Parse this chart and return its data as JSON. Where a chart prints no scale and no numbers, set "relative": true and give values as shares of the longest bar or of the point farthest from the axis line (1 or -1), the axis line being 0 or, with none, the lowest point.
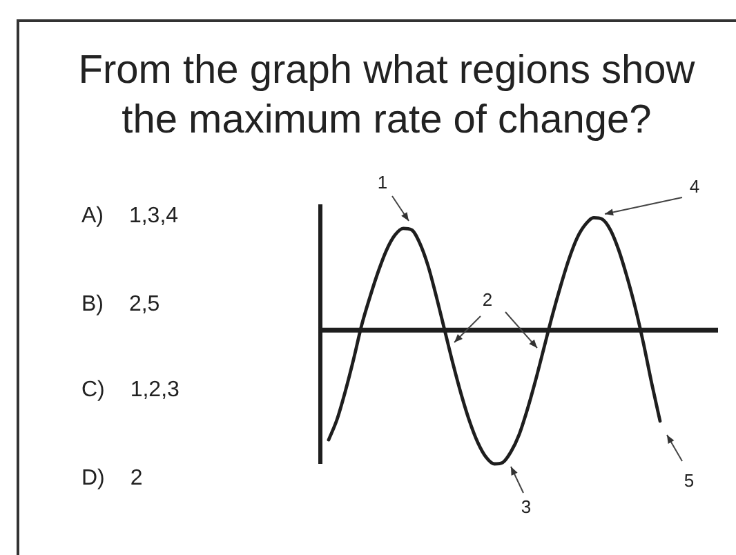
{
  "chart_data": {
    "type": "line",
    "title": "From the graph what regions show the maximum rate of change?",
    "annotations": [
      "1",
      "2",
      "3",
      "4",
      "5",
      "A) 1,3,4",
      "B) 2,5",
      "C) 1,2,3",
      "D) 2"
    ],
    "categories": [
      null,
      null,
      null,
      null,
      null,
      null,
      null,
      null,
      null,
      null,
      null,
      null,
      null,
      null,
      null,
      null,
      null,
      null,
      null,
      null,
      null,
      null,
      null,
      null,
      null,
      null,
      null,
      null,
      null,
      null,
      null,
      null,
      null,
      null,
      null,
      null,
      null,
      null,
      null,
      null,
      null,
      null,
      null,
      null,
      null,
      null,
      null,
      null,
      null
    ],
    "values": [
      null,
      -0.82,
      -0.67,
      -0.46,
      -0.22,
      0.04,
      0.25,
      0.44,
      0.6,
      0.71,
      0.76,
      0.75,
      0.65,
      0.48,
      0.25,
      0,
      -0.25,
      -0.48,
      -0.68,
      -0.84,
      -0.95,
      -1,
      -0.99,
      -0.91,
      -0.78,
      -0.59,
      -0.37,
      -0.13,
      0.11,
      0.33,
      0.53,
      0.69,
      0.79,
      0.84,
      0.83,
      0.75,
      0.6,
      0.4,
      0.17,
      -0.1,
      -0.4,
      -0.68,
      null,
      null,
      null,
      null,
      null,
      null,
      null
    ],
    "color": "#1e1e1e",
    "relative": true,
    "marker": "none",
    "line_style": "solid"
  }
}
